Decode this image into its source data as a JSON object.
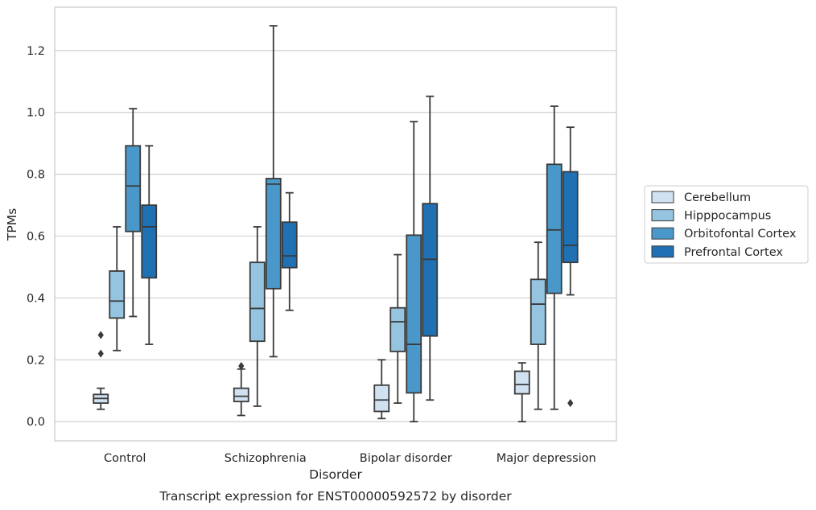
{
  "caption": "Transcript expression for ENST00000592572 by disorder",
  "chart_data": {
    "type": "box",
    "xlabel": "Disorder",
    "ylabel": "TPMs",
    "ylim": [
      -0.062,
      1.34
    ],
    "yticks": [
      0.0,
      0.2,
      0.4,
      0.6,
      0.8,
      1.0,
      1.2
    ],
    "ytick_labels": [
      "0.0",
      "0.2",
      "0.4",
      "0.6",
      "0.8",
      "1.0",
      "1.2"
    ],
    "grid": "horizontal",
    "legend_position": "right",
    "categories": [
      "Control",
      "Schizophrenia",
      "Bipolar disorder",
      "Major depression"
    ],
    "series": [
      {
        "name": "Cerebellum",
        "color": "#d0e1f2",
        "boxes": [
          {
            "whislo": 0.04,
            "q1": 0.06,
            "med": 0.075,
            "q3": 0.088,
            "whishi": 0.108,
            "fliers": [
              0.22,
              0.28
            ]
          },
          {
            "whislo": 0.02,
            "q1": 0.065,
            "med": 0.082,
            "q3": 0.108,
            "whishi": 0.17,
            "fliers": [
              0.18
            ]
          },
          {
            "whislo": 0.01,
            "q1": 0.033,
            "med": 0.07,
            "q3": 0.118,
            "whishi": 0.2,
            "fliers": []
          },
          {
            "whislo": 0.0,
            "q1": 0.09,
            "med": 0.12,
            "q3": 0.163,
            "whishi": 0.19,
            "fliers": []
          }
        ]
      },
      {
        "name": "Hipppocampus",
        "color": "#94c4df",
        "boxes": [
          {
            "whislo": 0.23,
            "q1": 0.335,
            "med": 0.39,
            "q3": 0.487,
            "whishi": 0.63,
            "fliers": []
          },
          {
            "whislo": 0.05,
            "q1": 0.26,
            "med": 0.366,
            "q3": 0.515,
            "whishi": 0.63,
            "fliers": []
          },
          {
            "whislo": 0.06,
            "q1": 0.227,
            "med": 0.323,
            "q3": 0.368,
            "whishi": 0.54,
            "fliers": []
          },
          {
            "whislo": 0.04,
            "q1": 0.25,
            "med": 0.38,
            "q3": 0.46,
            "whishi": 0.58,
            "fliers": []
          }
        ]
      },
      {
        "name": "Orbitofontal Cortex",
        "color": "#4a98c9",
        "boxes": [
          {
            "whislo": 0.34,
            "q1": 0.615,
            "med": 0.762,
            "q3": 0.892,
            "whishi": 1.012,
            "fliers": []
          },
          {
            "whislo": 0.21,
            "q1": 0.43,
            "med": 0.768,
            "q3": 0.786,
            "whishi": 1.28,
            "fliers": []
          },
          {
            "whislo": 0.0,
            "q1": 0.093,
            "med": 0.25,
            "q3": 0.603,
            "whishi": 0.97,
            "fliers": []
          },
          {
            "whislo": 0.04,
            "q1": 0.415,
            "med": 0.62,
            "q3": 0.832,
            "whishi": 1.02,
            "fliers": []
          }
        ]
      },
      {
        "name": "Prefrontal Cortex",
        "color": "#2070b4",
        "boxes": [
          {
            "whislo": 0.25,
            "q1": 0.465,
            "med": 0.63,
            "q3": 0.7,
            "whishi": 0.892,
            "fliers": []
          },
          {
            "whislo": 0.36,
            "q1": 0.498,
            "med": 0.536,
            "q3": 0.645,
            "whishi": 0.74,
            "fliers": []
          },
          {
            "whislo": 0.07,
            "q1": 0.277,
            "med": 0.525,
            "q3": 0.705,
            "whishi": 1.052,
            "fliers": []
          },
          {
            "whislo": 0.41,
            "q1": 0.515,
            "med": 0.57,
            "q3": 0.808,
            "whishi": 0.952,
            "fliers": [
              0.06
            ]
          }
        ]
      }
    ]
  }
}
